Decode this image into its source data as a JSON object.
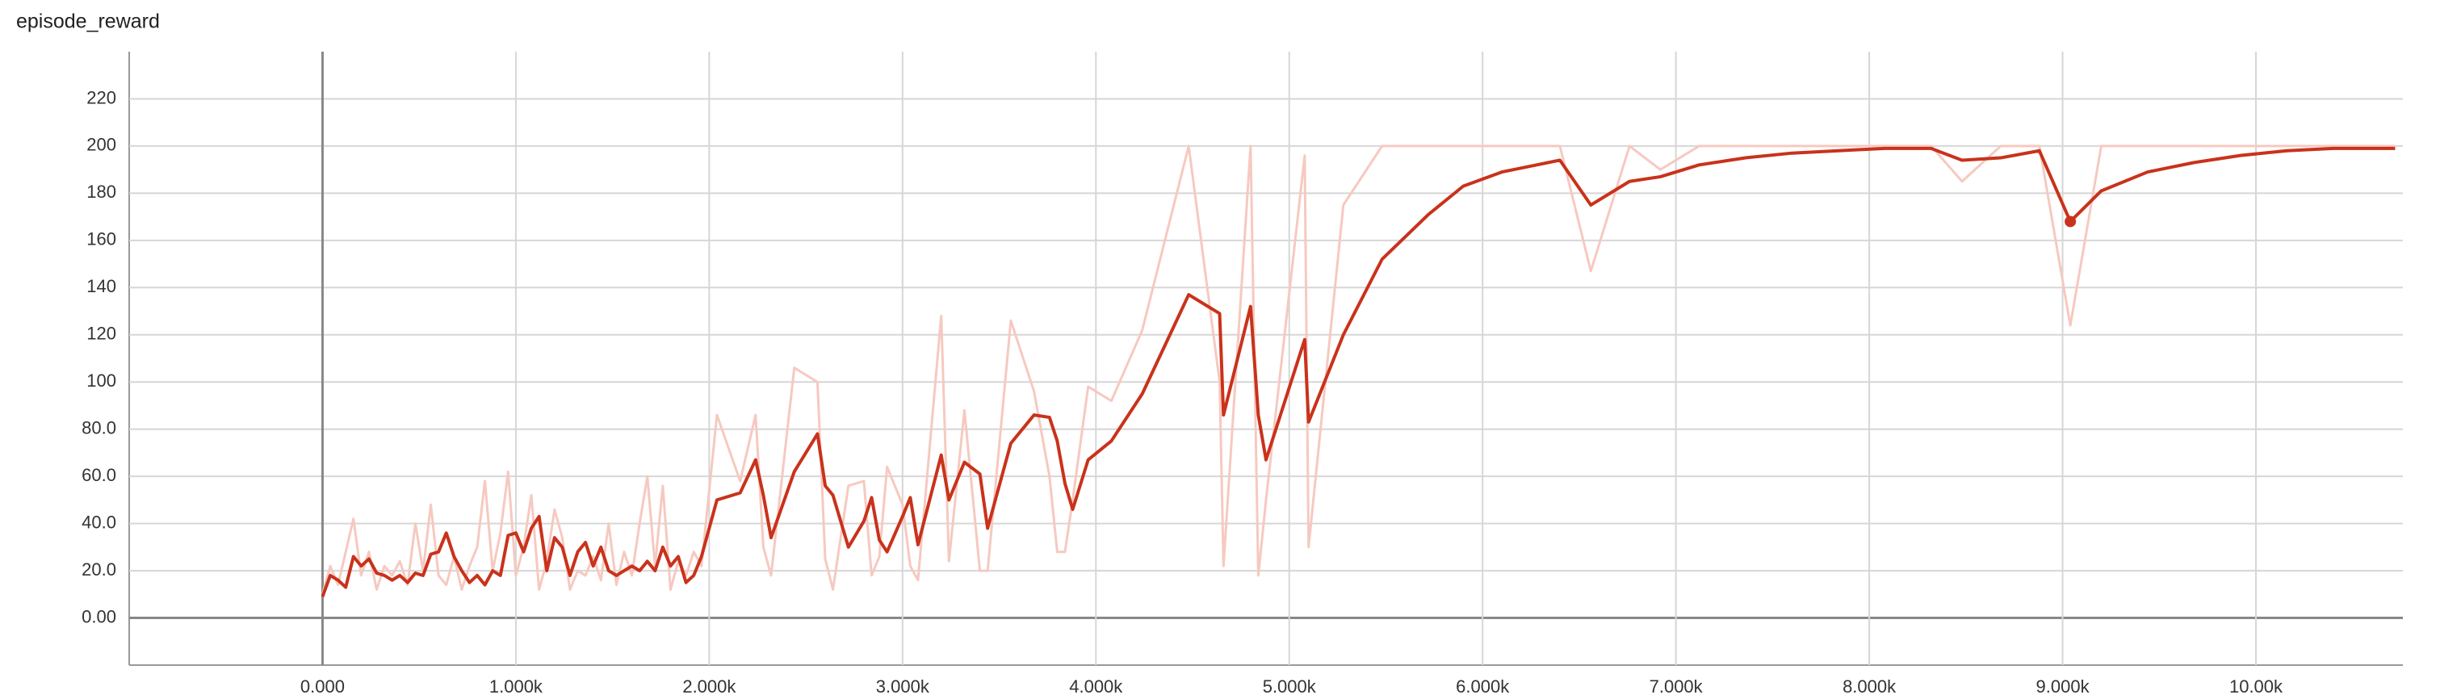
{
  "chart_data": {
    "type": "line",
    "title": "episode_reward",
    "x": [
      0,
      40,
      80,
      120,
      160,
      200,
      240,
      280,
      320,
      360,
      400,
      440,
      480,
      520,
      560,
      600,
      640,
      680,
      720,
      760,
      800,
      840,
      880,
      920,
      960,
      1000,
      1040,
      1080,
      1120,
      1160,
      1200,
      1240,
      1280,
      1320,
      1360,
      1400,
      1440,
      1480,
      1520,
      1560,
      1600,
      1640,
      1680,
      1720,
      1760,
      1800,
      1840,
      1880,
      1920,
      1960,
      2040,
      2160,
      2240,
      2280,
      2320,
      2440,
      2560,
      2600,
      2640,
      2720,
      2800,
      2840,
      2880,
      2920,
      3000,
      3040,
      3080,
      3200,
      3240,
      3320,
      3400,
      3440,
      3560,
      3680,
      3760,
      3800,
      3840,
      3880,
      3960,
      4080,
      4240,
      4480,
      4640,
      4660,
      4800,
      4840,
      4880,
      5080,
      5100,
      5280,
      5480,
      5720,
      5900,
      6100,
      6400,
      6560,
      6760,
      6920,
      7120,
      7360,
      7600,
      7840,
      8080,
      8320,
      8480,
      8680,
      8880,
      9040,
      9200,
      9440,
      9680,
      9920,
      10160,
      10400,
      10720
    ],
    "series": [
      {
        "color": "#f6c9c0",
        "values": [
          10,
          22,
          14,
          28,
          42,
          18,
          28,
          12,
          22,
          18,
          24,
          14,
          40,
          20,
          48,
          18,
          14,
          26,
          12,
          22,
          30,
          58,
          20,
          36,
          62,
          18,
          30,
          52,
          12,
          24,
          46,
          34,
          12,
          20,
          18,
          26,
          16,
          40,
          14,
          28,
          18,
          40,
          60,
          22,
          56,
          12,
          24,
          18,
          28,
          22,
          86,
          58,
          86,
          30,
          18,
          106,
          100,
          25,
          12,
          56,
          58,
          18,
          26,
          64,
          48,
          22,
          16,
          128,
          24,
          88,
          20,
          20,
          126,
          96,
          60,
          28,
          28,
          50,
          98,
          92,
          122,
          200,
          100,
          22,
          200,
          18,
          50,
          196,
          30,
          175,
          200,
          200,
          200,
          200,
          200,
          147,
          200,
          190,
          200,
          200,
          200,
          200,
          200,
          200,
          185,
          200,
          200,
          124,
          200,
          200,
          200,
          200,
          200,
          200,
          200
        ]
      },
      {
        "color": "#c9321b",
        "values": [
          9,
          18,
          16,
          13,
          26,
          22,
          25,
          19,
          18,
          16,
          18,
          15,
          19,
          18,
          27,
          28,
          36,
          26,
          20,
          15,
          18,
          14,
          20,
          18,
          35,
          36,
          28,
          38,
          43,
          20,
          34,
          30,
          18,
          28,
          32,
          22,
          30,
          20,
          18,
          20,
          22,
          20,
          24,
          20,
          30,
          22,
          26,
          15,
          18,
          26,
          50,
          53,
          67,
          52,
          34,
          62,
          78,
          56,
          52,
          30,
          41,
          51,
          33,
          28,
          43,
          51,
          31,
          69,
          50,
          66,
          61,
          38,
          74,
          86,
          85,
          75,
          57,
          46,
          67,
          75,
          95,
          137,
          129,
          86,
          132,
          86,
          67,
          118,
          83,
          120,
          152,
          171,
          183,
          189,
          194,
          175,
          185,
          187,
          192,
          195,
          197,
          198,
          199,
          199,
          194,
          195,
          198,
          168,
          181,
          189,
          193,
          196,
          198,
          199,
          199
        ]
      }
    ],
    "highlight_index": 107,
    "xlim": [
      -1000,
      10760
    ],
    "xticks": [
      {
        "value": 0,
        "label": "0.000"
      },
      {
        "value": 1000,
        "label": "1.000k"
      },
      {
        "value": 2000,
        "label": "2.000k"
      },
      {
        "value": 3000,
        "label": "3.000k"
      },
      {
        "value": 4000,
        "label": "4.000k"
      },
      {
        "value": 5000,
        "label": "5.000k"
      },
      {
        "value": 6000,
        "label": "6.000k"
      },
      {
        "value": 7000,
        "label": "7.000k"
      },
      {
        "value": 8000,
        "label": "8.000k"
      },
      {
        "value": 9000,
        "label": "9.000k"
      },
      {
        "value": 10000,
        "label": "10.00k"
      }
    ],
    "ylim": [
      -20,
      240
    ],
    "yticks": [
      {
        "value": 0,
        "label": "0.00"
      },
      {
        "value": 20,
        "label": "20.0"
      },
      {
        "value": 40,
        "label": "40.0"
      },
      {
        "value": 60,
        "label": "60.0"
      },
      {
        "value": 80,
        "label": "80.0"
      },
      100,
      120,
      140,
      160,
      180,
      200,
      220
    ],
    "grid": true
  }
}
